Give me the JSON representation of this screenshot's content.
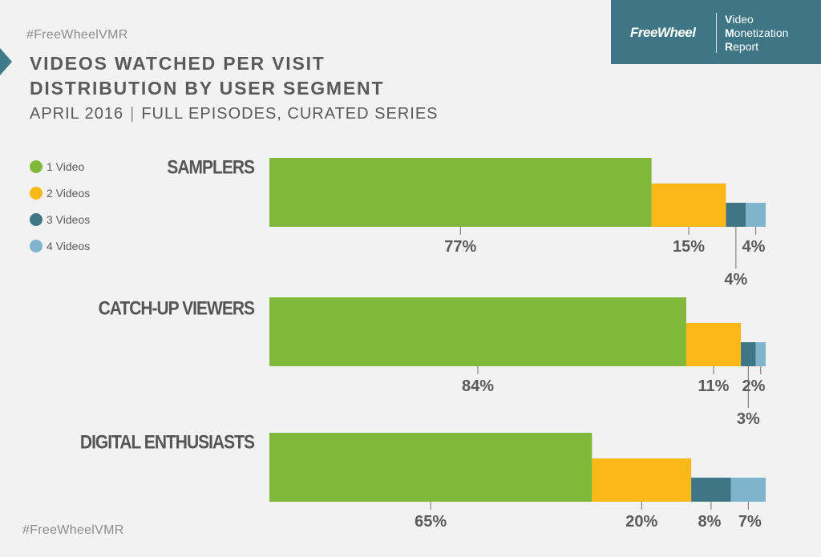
{
  "hashtag": "#FreeWheelVMR",
  "title": [
    "VIDEOS WATCHED PER VISIT",
    "DISTRIBUTION BY USER SEGMENT"
  ],
  "subtitle": {
    "date": "APRIL 2016",
    "separator": "|",
    "scope": "FULL EPISODES, CURATED SERIES"
  },
  "brand": {
    "logo": "FreeWheel",
    "report_lines": [
      {
        "initial": "V",
        "rest": "ideo"
      },
      {
        "initial": "M",
        "rest": "onetization"
      },
      {
        "initial": "R",
        "rest": "eport"
      }
    ],
    "color": "#3f7686"
  },
  "colors": {
    "1 Video": "#80b83a",
    "2 Videos": "#fbb917",
    "3 Videos": "#3f7686",
    "4 Videos": "#7eb5cc"
  },
  "chart_data": {
    "type": "bar",
    "stacked": true,
    "orientation": "horizontal",
    "title": "VIDEOS WATCHED PER VISIT DISTRIBUTION BY USER SEGMENT",
    "categories": [
      "SAMPLERS",
      "CATCH-UP VIEWERS",
      "DIGITAL ENTHUSIASTS"
    ],
    "series": [
      {
        "name": "1 Video",
        "values": [
          77,
          84,
          65
        ],
        "labels": [
          "77%",
          "84%",
          "65%"
        ]
      },
      {
        "name": "2 Videos",
        "values": [
          15,
          11,
          20
        ],
        "labels": [
          "15%",
          "11%",
          "20%"
        ]
      },
      {
        "name": "3 Videos",
        "values": [
          4,
          3,
          8
        ],
        "labels": [
          "4%",
          "3%",
          "8%"
        ]
      },
      {
        "name": "4 Videos",
        "values": [
          4,
          2,
          7
        ],
        "labels": [
          "4%",
          "2%",
          "7%"
        ]
      }
    ],
    "legend_position": "left",
    "unit": "%"
  }
}
